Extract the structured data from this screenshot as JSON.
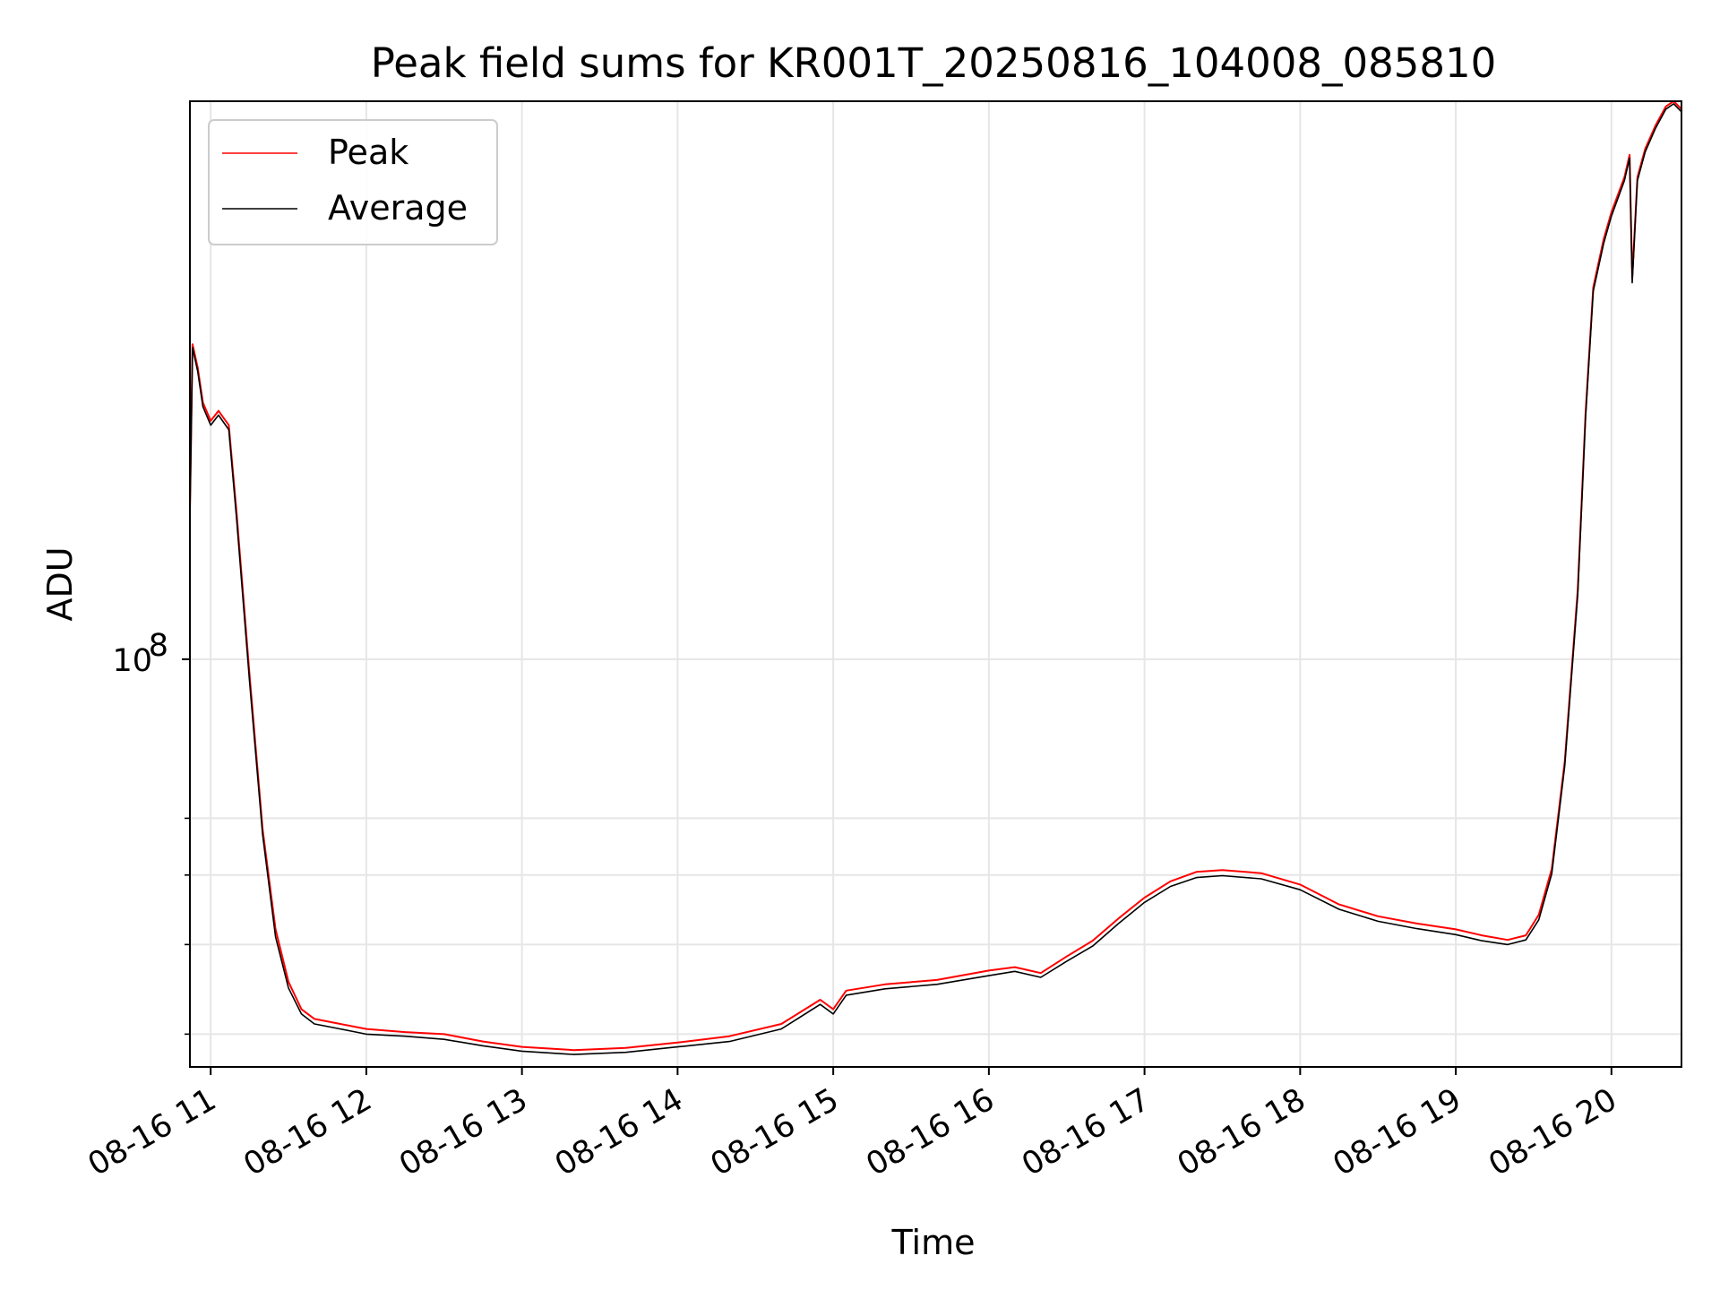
{
  "chart_data": {
    "type": "line",
    "title": "Peak field sums for KR001T_20250816_104008_085810",
    "xlabel": "Time",
    "ylabel": "ADU",
    "yscale": "log",
    "grid": true,
    "legend_position": "top-left",
    "x_ticks": [
      "08-16 11",
      "08-16 12",
      "08-16 13",
      "08-16 14",
      "08-16 15",
      "08-16 16",
      "08-16 17",
      "08-16 18",
      "08-16 19",
      "08-16 20"
    ],
    "y_ticks": [
      {
        "value": 100000000,
        "label": "10",
        "exponent": "8"
      }
    ],
    "y_minor_ticks": [
      30000000,
      40000000,
      50000000,
      60000000
    ],
    "xlim": [
      "2025-08-16 10:52",
      "2025-08-16 20:27"
    ],
    "ylim": [
      27000000,
      600000000
    ],
    "series": [
      {
        "name": "Peak",
        "color": "#ff0000",
        "points": [
          [
            "2025-08-16 10:52",
            160000000
          ],
          [
            "2025-08-16 10:53",
            275000000
          ],
          [
            "2025-08-16 10:55",
            255000000
          ],
          [
            "2025-08-16 10:57",
            228000000
          ],
          [
            "2025-08-16 11:00",
            215000000
          ],
          [
            "2025-08-16 11:03",
            222000000
          ],
          [
            "2025-08-16 11:07",
            212000000
          ],
          [
            "2025-08-16 11:10",
            160000000
          ],
          [
            "2025-08-16 11:15",
            95000000
          ],
          [
            "2025-08-16 11:20",
            58000000
          ],
          [
            "2025-08-16 11:25",
            42000000
          ],
          [
            "2025-08-16 11:30",
            35500000
          ],
          [
            "2025-08-16 11:35",
            32500000
          ],
          [
            "2025-08-16 11:40",
            31500000
          ],
          [
            "2025-08-16 11:50",
            31000000
          ],
          [
            "2025-08-16 12:00",
            30500000
          ],
          [
            "2025-08-16 12:15",
            30200000
          ],
          [
            "2025-08-16 12:30",
            30000000
          ],
          [
            "2025-08-16 12:45",
            29300000
          ],
          [
            "2025-08-16 13:00",
            28800000
          ],
          [
            "2025-08-16 13:20",
            28500000
          ],
          [
            "2025-08-16 13:40",
            28700000
          ],
          [
            "2025-08-16 14:00",
            29200000
          ],
          [
            "2025-08-16 14:20",
            29800000
          ],
          [
            "2025-08-16 14:40",
            31000000
          ],
          [
            "2025-08-16 14:55",
            33500000
          ],
          [
            "2025-08-16 15:00",
            32500000
          ],
          [
            "2025-08-16 15:05",
            34500000
          ],
          [
            "2025-08-16 15:20",
            35200000
          ],
          [
            "2025-08-16 15:40",
            35700000
          ],
          [
            "2025-08-16 16:00",
            36800000
          ],
          [
            "2025-08-16 16:10",
            37200000
          ],
          [
            "2025-08-16 16:20",
            36500000
          ],
          [
            "2025-08-16 16:30",
            38500000
          ],
          [
            "2025-08-16 16:40",
            40500000
          ],
          [
            "2025-08-16 16:50",
            43500000
          ],
          [
            "2025-08-16 17:00",
            46500000
          ],
          [
            "2025-08-16 17:10",
            49000000
          ],
          [
            "2025-08-16 17:20",
            50500000
          ],
          [
            "2025-08-16 17:30",
            50800000
          ],
          [
            "2025-08-16 17:45",
            50300000
          ],
          [
            "2025-08-16 18:00",
            48500000
          ],
          [
            "2025-08-16 18:15",
            45500000
          ],
          [
            "2025-08-16 18:30",
            43800000
          ],
          [
            "2025-08-16 18:45",
            42800000
          ],
          [
            "2025-08-16 19:00",
            42000000
          ],
          [
            "2025-08-16 19:10",
            41200000
          ],
          [
            "2025-08-16 19:20",
            40600000
          ],
          [
            "2025-08-16 19:27",
            41200000
          ],
          [
            "2025-08-16 19:32",
            44000000
          ],
          [
            "2025-08-16 19:37",
            51000000
          ],
          [
            "2025-08-16 19:42",
            72000000
          ],
          [
            "2025-08-16 19:47",
            125000000
          ],
          [
            "2025-08-16 19:50",
            220000000
          ],
          [
            "2025-08-16 19:53",
            330000000
          ],
          [
            "2025-08-16 19:57",
            385000000
          ],
          [
            "2025-08-16 20:00",
            420000000
          ],
          [
            "2025-08-16 20:05",
            470000000
          ],
          [
            "2025-08-16 20:07",
            505000000
          ],
          [
            "2025-08-16 20:08",
            340000000
          ],
          [
            "2025-08-16 20:10",
            470000000
          ],
          [
            "2025-08-16 20:13",
            515000000
          ],
          [
            "2025-08-16 20:17",
            555000000
          ],
          [
            "2025-08-16 20:21",
            590000000
          ],
          [
            "2025-08-16 20:24",
            600000000
          ],
          [
            "2025-08-16 20:27",
            585000000
          ]
        ]
      },
      {
        "name": "Average",
        "color": "#000000",
        "points": [
          [
            "2025-08-16 10:52",
            158000000
          ],
          [
            "2025-08-16 10:53",
            272000000
          ],
          [
            "2025-08-16 10:55",
            252000000
          ],
          [
            "2025-08-16 10:57",
            225000000
          ],
          [
            "2025-08-16 11:00",
            212000000
          ],
          [
            "2025-08-16 11:03",
            219000000
          ],
          [
            "2025-08-16 11:07",
            209000000
          ],
          [
            "2025-08-16 11:10",
            157000000
          ],
          [
            "2025-08-16 11:15",
            93000000
          ],
          [
            "2025-08-16 11:20",
            57000000
          ],
          [
            "2025-08-16 11:25",
            41000000
          ],
          [
            "2025-08-16 11:30",
            34800000
          ],
          [
            "2025-08-16 11:35",
            32000000
          ],
          [
            "2025-08-16 11:40",
            31000000
          ],
          [
            "2025-08-16 11:50",
            30500000
          ],
          [
            "2025-08-16 12:00",
            30000000
          ],
          [
            "2025-08-16 12:15",
            29800000
          ],
          [
            "2025-08-16 12:30",
            29500000
          ],
          [
            "2025-08-16 12:45",
            28900000
          ],
          [
            "2025-08-16 13:00",
            28400000
          ],
          [
            "2025-08-16 13:20",
            28100000
          ],
          [
            "2025-08-16 13:40",
            28300000
          ],
          [
            "2025-08-16 14:00",
            28800000
          ],
          [
            "2025-08-16 14:20",
            29300000
          ],
          [
            "2025-08-16 14:40",
            30500000
          ],
          [
            "2025-08-16 14:55",
            33000000
          ],
          [
            "2025-08-16 15:00",
            32000000
          ],
          [
            "2025-08-16 15:05",
            34000000
          ],
          [
            "2025-08-16 15:20",
            34700000
          ],
          [
            "2025-08-16 15:40",
            35200000
          ],
          [
            "2025-08-16 16:00",
            36200000
          ],
          [
            "2025-08-16 16:10",
            36700000
          ],
          [
            "2025-08-16 16:20",
            36000000
          ],
          [
            "2025-08-16 16:30",
            37900000
          ],
          [
            "2025-08-16 16:40",
            39800000
          ],
          [
            "2025-08-16 16:50",
            42800000
          ],
          [
            "2025-08-16 17:00",
            45800000
          ],
          [
            "2025-08-16 17:10",
            48200000
          ],
          [
            "2025-08-16 17:20",
            49600000
          ],
          [
            "2025-08-16 17:30",
            49900000
          ],
          [
            "2025-08-16 17:45",
            49400000
          ],
          [
            "2025-08-16 18:00",
            47700000
          ],
          [
            "2025-08-16 18:15",
            44800000
          ],
          [
            "2025-08-16 18:30",
            43100000
          ],
          [
            "2025-08-16 18:45",
            42100000
          ],
          [
            "2025-08-16 19:00",
            41300000
          ],
          [
            "2025-08-16 19:10",
            40500000
          ],
          [
            "2025-08-16 19:20",
            40000000
          ],
          [
            "2025-08-16 19:27",
            40600000
          ],
          [
            "2025-08-16 19:32",
            43300000
          ],
          [
            "2025-08-16 19:37",
            50200000
          ],
          [
            "2025-08-16 19:42",
            71000000
          ],
          [
            "2025-08-16 19:47",
            123000000
          ],
          [
            "2025-08-16 19:50",
            217000000
          ],
          [
            "2025-08-16 19:53",
            326000000
          ],
          [
            "2025-08-16 19:57",
            380000000
          ],
          [
            "2025-08-16 20:00",
            415000000
          ],
          [
            "2025-08-16 20:05",
            465000000
          ],
          [
            "2025-08-16 20:07",
            500000000
          ],
          [
            "2025-08-16 20:08",
            335000000
          ],
          [
            "2025-08-16 20:10",
            465000000
          ],
          [
            "2025-08-16 20:13",
            510000000
          ],
          [
            "2025-08-16 20:17",
            550000000
          ],
          [
            "2025-08-16 20:21",
            585000000
          ],
          [
            "2025-08-16 20:24",
            595000000
          ],
          [
            "2025-08-16 20:27",
            580000000
          ]
        ]
      }
    ]
  }
}
